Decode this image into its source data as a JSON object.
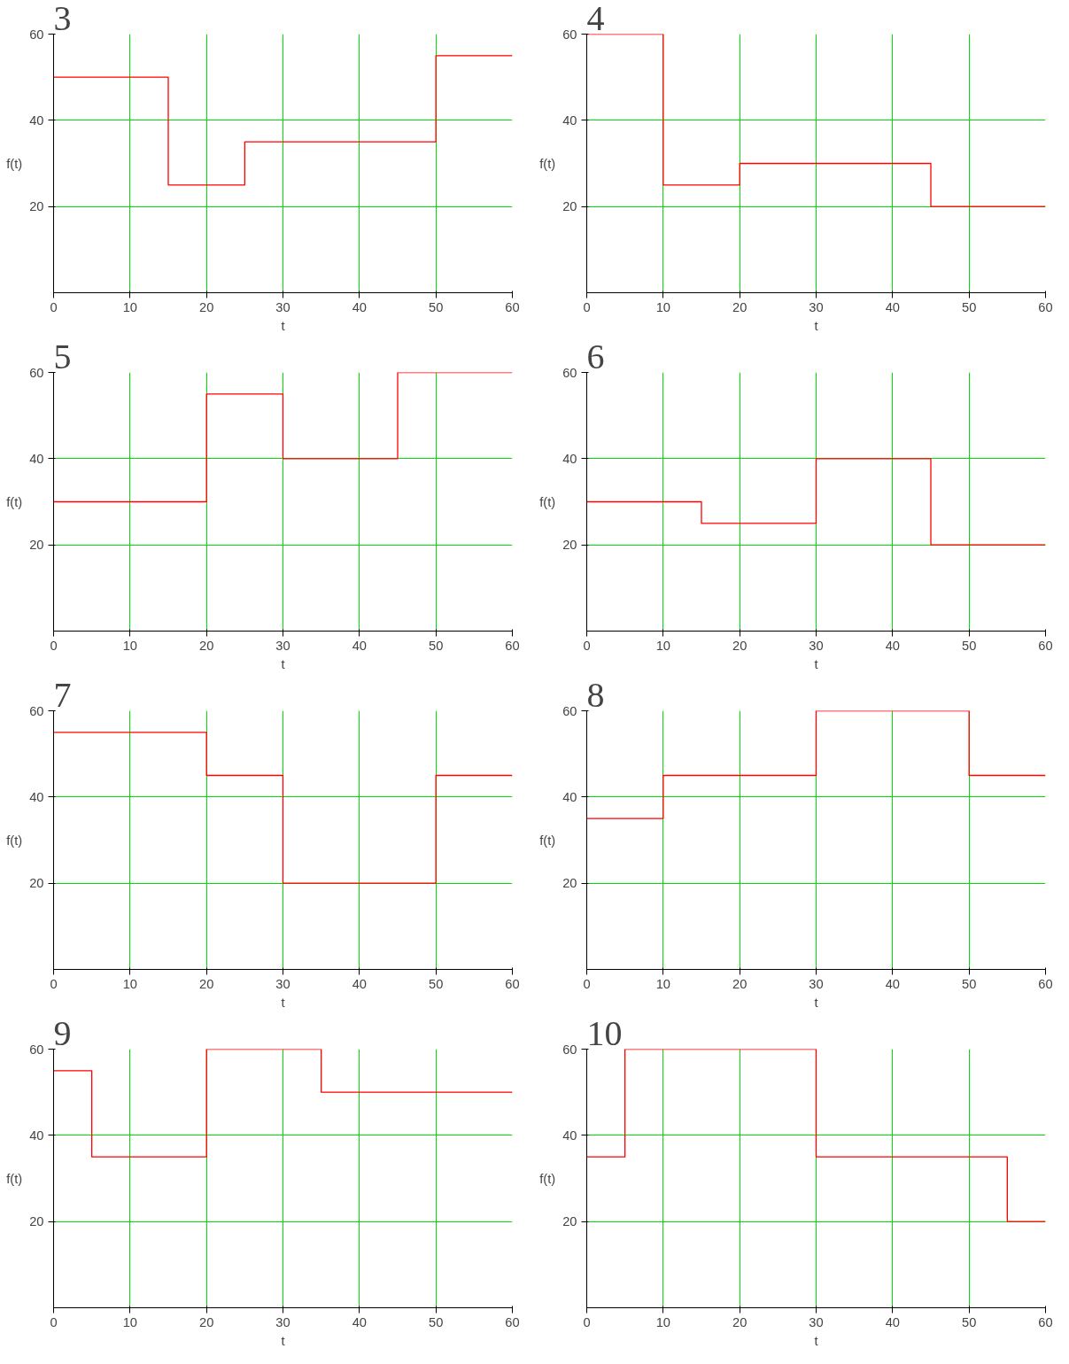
{
  "chart_data": [
    {
      "type": "step",
      "title": "3",
      "xlabel": "t",
      "ylabel": "f(t)",
      "x": [
        0,
        15,
        25,
        50,
        60
      ],
      "values": [
        50,
        25,
        35,
        55,
        55
      ],
      "color": "#ff0000",
      "xlim": [
        0,
        60
      ],
      "ylim": [
        0,
        60
      ],
      "xticks": [
        0,
        10,
        20,
        30,
        40,
        50,
        60
      ],
      "yticks": [
        20,
        40,
        60
      ],
      "grid": true
    },
    {
      "type": "step",
      "title": "4",
      "xlabel": "t",
      "ylabel": "f(t)",
      "x": [
        0,
        10,
        20,
        45,
        60
      ],
      "values": [
        60,
        25,
        30,
        20,
        20
      ],
      "color": "#ff0000",
      "xlim": [
        0,
        60
      ],
      "ylim": [
        0,
        60
      ],
      "xticks": [
        0,
        10,
        20,
        30,
        40,
        50,
        60
      ],
      "yticks": [
        20,
        40,
        60
      ],
      "grid": true
    },
    {
      "type": "step",
      "title": "5",
      "xlabel": "t",
      "ylabel": "f(t)",
      "x": [
        0,
        20,
        30,
        45,
        60
      ],
      "values": [
        30,
        55,
        40,
        60,
        60
      ],
      "color": "#ff0000",
      "xlim": [
        0,
        60
      ],
      "ylim": [
        0,
        60
      ],
      "xticks": [
        0,
        10,
        20,
        30,
        40,
        50,
        60
      ],
      "yticks": [
        20,
        40,
        60
      ],
      "grid": true
    },
    {
      "type": "step",
      "title": "6",
      "xlabel": "t",
      "ylabel": "f(t)",
      "x": [
        0,
        15,
        30,
        45,
        60
      ],
      "values": [
        30,
        25,
        40,
        20,
        20
      ],
      "color": "#ff0000",
      "xlim": [
        0,
        60
      ],
      "ylim": [
        0,
        60
      ],
      "xticks": [
        0,
        10,
        20,
        30,
        40,
        50,
        60
      ],
      "yticks": [
        20,
        40,
        60
      ],
      "grid": true
    },
    {
      "type": "step",
      "title": "7",
      "xlabel": "t",
      "ylabel": "f(t)",
      "x": [
        0,
        20,
        30,
        50,
        60
      ],
      "values": [
        55,
        45,
        20,
        45,
        45
      ],
      "color": "#ff0000",
      "xlim": [
        0,
        60
      ],
      "ylim": [
        0,
        60
      ],
      "xticks": [
        0,
        10,
        20,
        30,
        40,
        50,
        60
      ],
      "yticks": [
        20,
        40,
        60
      ],
      "grid": true
    },
    {
      "type": "step",
      "title": "8",
      "xlabel": "t",
      "ylabel": "f(t)",
      "x": [
        0,
        10,
        30,
        50,
        60
      ],
      "values": [
        35,
        45,
        60,
        45,
        45
      ],
      "color": "#ff0000",
      "xlim": [
        0,
        60
      ],
      "ylim": [
        0,
        60
      ],
      "xticks": [
        0,
        10,
        20,
        30,
        40,
        50,
        60
      ],
      "yticks": [
        20,
        40,
        60
      ],
      "grid": true
    },
    {
      "type": "step",
      "title": "9",
      "xlabel": "t",
      "ylabel": "f(t)",
      "x": [
        0,
        5,
        20,
        35,
        60
      ],
      "values": [
        55,
        35,
        60,
        50,
        50
      ],
      "color": "#ff0000",
      "xlim": [
        0,
        60
      ],
      "ylim": [
        0,
        60
      ],
      "xticks": [
        0,
        10,
        20,
        30,
        40,
        50,
        60
      ],
      "yticks": [
        20,
        40,
        60
      ],
      "grid": true
    },
    {
      "type": "step",
      "title": "10",
      "xlabel": "t",
      "ylabel": "f(t)",
      "x": [
        0,
        5,
        30,
        55,
        60
      ],
      "values": [
        35,
        60,
        35,
        20,
        20
      ],
      "color": "#ff0000",
      "xlim": [
        0,
        60
      ],
      "ylim": [
        0,
        60
      ],
      "xticks": [
        0,
        10,
        20,
        30,
        40,
        50,
        60
      ],
      "yticks": [
        20,
        40,
        60
      ],
      "grid": true
    }
  ]
}
